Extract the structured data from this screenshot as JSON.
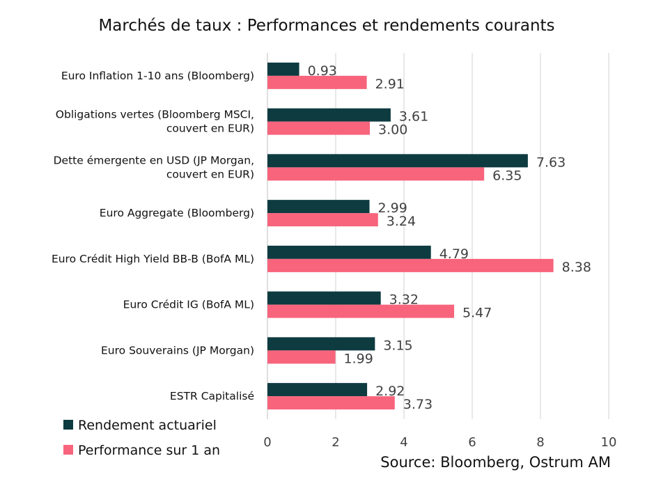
{
  "chart_data": {
    "type": "bar",
    "orientation": "horizontal",
    "title": "Marchés de taux : Performances et rendements courants",
    "categories": [
      [
        "Euro Inflation 1-10 ans (Bloomberg)"
      ],
      [
        "Obligations vertes (Bloomberg MSCI,",
        "couvert en EUR)"
      ],
      [
        "Dette émergente en USD (JP Morgan,",
        "couvert en EUR)"
      ],
      [
        "Euro Aggregate (Bloomberg)"
      ],
      [
        "Euro Crédit High Yield BB-B (BofA ML)"
      ],
      [
        "Euro Crédit IG (BofA ML)"
      ],
      [
        "Euro Souverains (JP Morgan)"
      ],
      [
        "ESTR Capitalisé"
      ]
    ],
    "series": [
      {
        "name": "Rendement actuariel",
        "color": "#0d3b40",
        "values": [
          0.93,
          3.61,
          7.63,
          2.99,
          4.79,
          3.32,
          3.15,
          2.92
        ],
        "labels": [
          "0.93",
          "3.61",
          "7.63",
          "2.99",
          "4.79",
          "3.32",
          "3.15",
          "2.92"
        ]
      },
      {
        "name": "Performance sur 1 an",
        "color": "#f7647c",
        "values": [
          2.91,
          3.0,
          6.35,
          3.24,
          8.38,
          5.47,
          1.99,
          3.73
        ],
        "labels": [
          "2.91",
          "3.00",
          "6.35",
          "3.24",
          "8.38",
          "5.47",
          "1.99",
          "3.73"
        ]
      }
    ],
    "xlim": [
      0,
      10
    ],
    "xticks": [
      "0",
      "2",
      "4",
      "6",
      "8",
      "10"
    ],
    "grid": true,
    "legend_position": "bottom-left",
    "source": "Source: Bloomberg, Ostrum AM"
  }
}
